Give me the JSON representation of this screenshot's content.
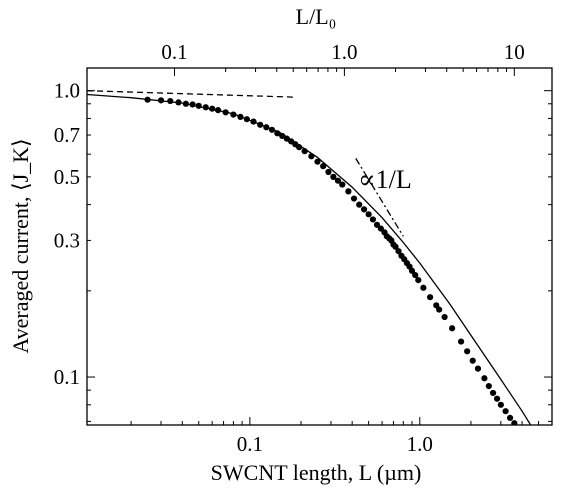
{
  "chart_data": {
    "type": "scatter",
    "xscale": "log",
    "yscale": "log",
    "xlim": [
      0.011,
      6.0
    ],
    "ylim": [
      0.068,
      1.2
    ],
    "grid": false,
    "xlabel": "SWCNT length, L (µm)",
    "ylabel": "Averaged current, ⟨J_K⟩",
    "top_xlabel": "L/L₀",
    "annotation": "∝1/L",
    "xticklabels": [
      "0.1",
      "1.0"
    ],
    "xticks": [
      0.1,
      1.0
    ],
    "top_xticklabels": [
      "0.1",
      "1.0",
      "10"
    ],
    "top_xticks": [
      0.036,
      0.36,
      3.6
    ],
    "yticklabels": [
      "1.0",
      "0.7",
      "0.5",
      "0.3",
      "0.1"
    ],
    "yticks": [
      1.0,
      0.7,
      0.5,
      0.3,
      0.1
    ],
    "series": [
      {
        "kind": "points",
        "x": [
          0.025,
          0.03,
          0.034,
          0.038,
          0.042,
          0.046,
          0.05,
          0.055,
          0.06,
          0.065,
          0.072,
          0.08,
          0.088,
          0.096,
          0.105,
          0.115,
          0.125,
          0.135,
          0.145,
          0.155,
          0.165,
          0.175,
          0.185,
          0.195,
          0.21,
          0.23,
          0.25,
          0.27,
          0.29,
          0.31,
          0.33,
          0.35,
          0.38,
          0.41,
          0.44,
          0.47,
          0.5,
          0.53,
          0.56,
          0.59,
          0.62,
          0.64,
          0.66,
          0.68,
          0.7,
          0.72,
          0.75,
          0.78,
          0.81,
          0.84,
          0.87,
          0.9,
          0.94,
          0.98,
          1.05,
          1.15,
          1.25,
          1.3,
          1.4,
          1.55,
          1.75,
          1.9,
          2.05,
          2.2,
          2.4,
          2.55,
          2.7,
          2.85,
          3.0,
          3.2,
          3.4,
          3.6,
          3.9,
          4.3
        ],
        "y": [
          0.93,
          0.925,
          0.92,
          0.91,
          0.9,
          0.895,
          0.885,
          0.875,
          0.865,
          0.855,
          0.84,
          0.825,
          0.81,
          0.795,
          0.78,
          0.76,
          0.745,
          0.73,
          0.71,
          0.695,
          0.68,
          0.665,
          0.65,
          0.635,
          0.615,
          0.59,
          0.565,
          0.545,
          0.52,
          0.5,
          0.485,
          0.47,
          0.445,
          0.42,
          0.4,
          0.385,
          0.37,
          0.355,
          0.34,
          0.33,
          0.32,
          0.31,
          0.305,
          0.3,
          0.29,
          0.285,
          0.275,
          0.265,
          0.258,
          0.25,
          0.243,
          0.235,
          0.227,
          0.218,
          0.205,
          0.19,
          0.178,
          0.172,
          0.162,
          0.148,
          0.133,
          0.123,
          0.114,
          0.107,
          0.099,
          0.093,
          0.088,
          0.084,
          0.08,
          0.076,
          0.072,
          0.069,
          0.065,
          0.06
        ]
      },
      {
        "kind": "solid-line",
        "x": [
          0.011,
          0.02,
          0.04,
          0.08,
          0.15,
          0.25,
          0.4,
          0.6,
          0.8,
          1.0,
          1.5,
          2.0,
          3.0,
          4.0,
          5.5
        ],
        "y": [
          0.97,
          0.945,
          0.905,
          0.83,
          0.715,
          0.585,
          0.46,
          0.36,
          0.295,
          0.25,
          0.18,
          0.14,
          0.098,
          0.076,
          0.056
        ]
      },
      {
        "kind": "dashed-line",
        "x": [
          0.011,
          0.18
        ],
        "y": [
          1.0,
          0.95
        ]
      },
      {
        "kind": "dash-dot-line",
        "x": [
          0.42,
          0.8
        ],
        "y": [
          0.58,
          0.31
        ]
      }
    ]
  }
}
